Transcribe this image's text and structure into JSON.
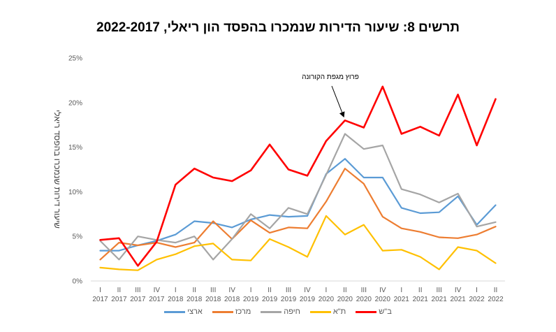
{
  "chart_data": {
    "type": "line",
    "title": "תרשים 8: שיעור הדירות שנמכרו בהפסד הון ריאלי, 2022-2017",
    "xlabel": "",
    "ylabel": "שיעור דירות שנמכרו בהפסד ריאלי",
    "ylim": [
      0,
      25
    ],
    "yticks": [
      "0%",
      "5%",
      "10%",
      "15%",
      "20%",
      "25%"
    ],
    "ytick_values": [
      0,
      5,
      10,
      15,
      20,
      25
    ],
    "grid": false,
    "legend_position": "bottom",
    "categories": [
      {
        "q": "I",
        "y": "2017"
      },
      {
        "q": "II",
        "y": "2017"
      },
      {
        "q": "III",
        "y": "2017"
      },
      {
        "q": "IV",
        "y": "2017"
      },
      {
        "q": "I",
        "y": "2018"
      },
      {
        "q": "II",
        "y": "2018"
      },
      {
        "q": "III",
        "y": "2018"
      },
      {
        "q": "IV",
        "y": "2018"
      },
      {
        "q": "I",
        "y": "2019"
      },
      {
        "q": "II",
        "y": "2019"
      },
      {
        "q": "III",
        "y": "2019"
      },
      {
        "q": "IV",
        "y": "2019"
      },
      {
        "q": "I",
        "y": "2020"
      },
      {
        "q": "II",
        "y": "2020"
      },
      {
        "q": "III",
        "y": "2020"
      },
      {
        "q": "IV",
        "y": "2020"
      },
      {
        "q": "I",
        "y": "2021"
      },
      {
        "q": "II",
        "y": "2021"
      },
      {
        "q": "III",
        "y": "2021"
      },
      {
        "q": "IV",
        "y": "2021"
      },
      {
        "q": "I",
        "y": "2022"
      },
      {
        "q": "II",
        "y": "2022"
      }
    ],
    "series": [
      {
        "name": "ארצי",
        "color": "#5B9BD5",
        "values": [
          3.4,
          3.4,
          4.0,
          4.5,
          5.2,
          6.7,
          6.5,
          6.0,
          6.9,
          7.4,
          7.2,
          7.3,
          12.0,
          13.7,
          11.6,
          11.6,
          8.2,
          7.6,
          7.7,
          9.5,
          6.3,
          8.5
        ]
      },
      {
        "name": "מרכז",
        "color": "#ED7D31",
        "values": [
          2.4,
          4.3,
          4.0,
          4.3,
          3.8,
          4.3,
          6.7,
          4.7,
          6.8,
          5.4,
          6.0,
          5.9,
          8.9,
          12.6,
          10.9,
          7.2,
          5.9,
          5.5,
          4.9,
          4.8,
          5.2,
          6.1
        ]
      },
      {
        "name": "חיפה",
        "color": "#A5A5A5",
        "values": [
          4.5,
          2.4,
          5.0,
          4.6,
          4.3,
          5.0,
          2.4,
          4.7,
          7.5,
          5.9,
          8.2,
          7.5,
          11.9,
          16.5,
          14.8,
          15.2,
          10.3,
          9.7,
          8.8,
          9.8,
          6.1,
          6.6
        ]
      },
      {
        "name": "ת\"א",
        "color": "#FFC000",
        "values": [
          1.5,
          1.3,
          1.2,
          2.4,
          3.0,
          3.9,
          4.2,
          2.4,
          2.3,
          4.7,
          3.8,
          2.7,
          7.3,
          5.2,
          6.3,
          3.4,
          3.5,
          2.7,
          1.3,
          3.8,
          3.4,
          2.0
        ]
      },
      {
        "name": "ב\"ש",
        "color": "#FF0000",
        "values": [
          4.6,
          4.8,
          1.7,
          4.4,
          10.8,
          12.6,
          11.6,
          11.2,
          12.4,
          15.3,
          12.5,
          11.8,
          15.7,
          18.0,
          17.2,
          21.8,
          16.5,
          17.3,
          16.3,
          20.9,
          15.2,
          20.4
        ]
      }
    ],
    "legend_order": [
      "ארצי",
      "מרכז",
      "חיפה",
      "ת\"א",
      "ב\"ש"
    ],
    "annotations": [
      {
        "text": "פרוץ מגפת הקורונה",
        "points_to": {
          "category_index": 13,
          "series": "ב\"ש"
        }
      }
    ]
  }
}
